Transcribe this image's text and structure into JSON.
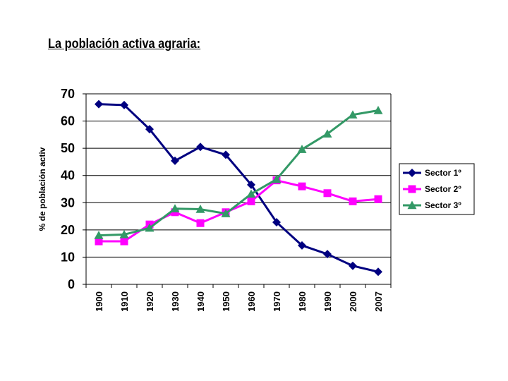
{
  "slide": {
    "title": "La población activa agraria:"
  },
  "chart_data": {
    "type": "line",
    "title": "",
    "xlabel": "",
    "ylabel": "% de población activ",
    "x": [
      "1900",
      "1910",
      "1920",
      "1930",
      "1940",
      "1950",
      "1960",
      "1970",
      "1980",
      "1990",
      "2000",
      "2007"
    ],
    "ylim": [
      0,
      70
    ],
    "yticks": [
      0,
      10,
      20,
      30,
      40,
      50,
      60,
      70
    ],
    "grid": true,
    "legend_position": "right",
    "series": [
      {
        "name": "Sector 1º",
        "color": "#000080",
        "marker": "diamond",
        "values": [
          66.2,
          65.9,
          57.0,
          45.4,
          50.5,
          47.6,
          36.6,
          22.8,
          14.3,
          11.1,
          6.8,
          4.6
        ]
      },
      {
        "name": "Sector 2º",
        "color": "#ff00ff",
        "marker": "square",
        "values": [
          15.8,
          15.8,
          22.0,
          26.5,
          22.5,
          26.5,
          30.5,
          38.2,
          36.0,
          33.5,
          30.5,
          31.3
        ]
      },
      {
        "name": "Sector 3º",
        "color": "#339966",
        "marker": "triangle",
        "values": [
          18.0,
          18.3,
          20.7,
          27.8,
          27.6,
          26.0,
          33.2,
          38.6,
          49.6,
          55.3,
          62.3,
          63.9
        ]
      }
    ]
  }
}
